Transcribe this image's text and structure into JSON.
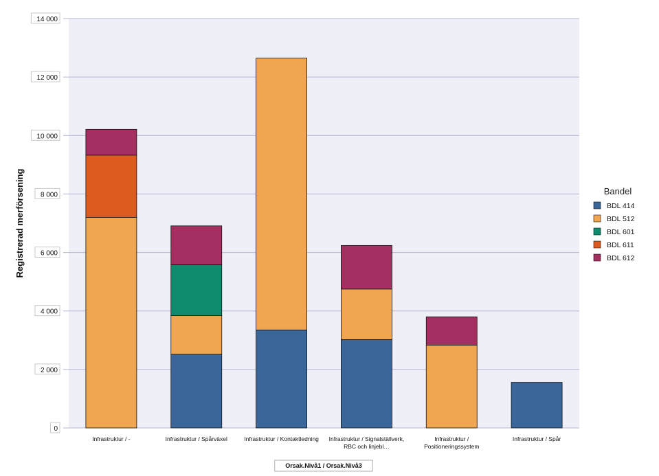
{
  "chart_data": {
    "type": "bar",
    "stacked": true,
    "ylabel": "Registrerad merförsening",
    "xlabel": "Orsak.Nivå1 / Orsak.Nivå3",
    "ylim": [
      0,
      14000
    ],
    "yticks": [
      0,
      2000,
      4000,
      6000,
      8000,
      10000,
      12000,
      14000
    ],
    "ytick_labels": [
      "0",
      "2 000",
      "4 000",
      "6 000",
      "8 000",
      "10 000",
      "12 000",
      "14 000"
    ],
    "grid": true,
    "categories": [
      [
        "Infrastruktur / -"
      ],
      [
        "Infrastruktur / Spårväxel"
      ],
      [
        "Infrastruktur / Kontaktledning"
      ],
      [
        "Infrastruktur / Signalställverk,",
        "RBC och linjebl…"
      ],
      [
        "Infrastruktur /",
        "Positioneringssystem"
      ],
      [
        "Infrastruktur / Spår"
      ]
    ],
    "legend": {
      "title": "Bandel",
      "position": "right"
    },
    "series": [
      {
        "name": "BDL 414",
        "color": "#3a6699",
        "values": [
          0,
          2520,
          3350,
          3020,
          0,
          1560
        ]
      },
      {
        "name": "BDL 512",
        "color": "#f0a550",
        "values": [
          7200,
          1320,
          9300,
          1730,
          2830,
          0
        ]
      },
      {
        "name": "BDL 601",
        "color": "#0f8c6e",
        "values": [
          0,
          1740,
          0,
          0,
          0,
          0
        ]
      },
      {
        "name": "BDL 611",
        "color": "#de5b20",
        "values": [
          2130,
          0,
          0,
          0,
          0,
          0
        ]
      },
      {
        "name": "BDL 612",
        "color": "#a33060",
        "values": [
          880,
          1330,
          0,
          1490,
          970,
          0
        ]
      }
    ],
    "plot_background": "#efeff7",
    "gridline_color": "#b4b4d2"
  }
}
